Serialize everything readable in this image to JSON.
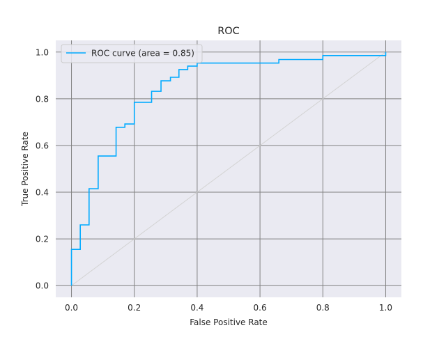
{
  "chart_data": {
    "type": "line",
    "title": "ROC",
    "xlabel": "False Positive Rate",
    "ylabel": "True Positive Rate",
    "xlim": [
      -0.05,
      1.05
    ],
    "ylim": [
      -0.05,
      1.05
    ],
    "xticks": [
      0.0,
      0.2,
      0.4,
      0.6,
      0.8,
      1.0
    ],
    "yticks": [
      0.0,
      0.2,
      0.4,
      0.6,
      0.8,
      1.0
    ],
    "xtick_labels": [
      "0.0",
      "0.2",
      "0.4",
      "0.6",
      "0.8",
      "1.0"
    ],
    "ytick_labels": [
      "0.0",
      "0.2",
      "0.4",
      "0.6",
      "0.8",
      "1.0"
    ],
    "grid": true,
    "legend_position": "top-left",
    "series": [
      {
        "name": "ROC curve (area = 0.85)",
        "color": "#00aaff",
        "step": true,
        "points": [
          [
            0.0,
            0.0
          ],
          [
            0.0,
            0.155
          ],
          [
            0.028,
            0.155
          ],
          [
            0.028,
            0.26
          ],
          [
            0.056,
            0.26
          ],
          [
            0.056,
            0.415
          ],
          [
            0.085,
            0.415
          ],
          [
            0.085,
            0.555
          ],
          [
            0.142,
            0.555
          ],
          [
            0.142,
            0.678
          ],
          [
            0.17,
            0.678
          ],
          [
            0.17,
            0.692
          ],
          [
            0.2,
            0.692
          ],
          [
            0.2,
            0.785
          ],
          [
            0.255,
            0.785
          ],
          [
            0.255,
            0.832
          ],
          [
            0.285,
            0.832
          ],
          [
            0.285,
            0.877
          ],
          [
            0.315,
            0.877
          ],
          [
            0.315,
            0.892
          ],
          [
            0.342,
            0.892
          ],
          [
            0.342,
            0.925
          ],
          [
            0.37,
            0.925
          ],
          [
            0.37,
            0.94
          ],
          [
            0.4,
            0.94
          ],
          [
            0.4,
            0.953
          ],
          [
            0.66,
            0.953
          ],
          [
            0.66,
            0.968
          ],
          [
            0.8,
            0.968
          ],
          [
            0.8,
            0.985
          ],
          [
            1.0,
            0.985
          ],
          [
            1.0,
            1.0
          ]
        ]
      }
    ],
    "reference_line": {
      "color": "#d3d3d3",
      "points": [
        [
          0.0,
          0.0
        ],
        [
          1.0,
          1.0
        ]
      ]
    },
    "colors": {
      "plot_background": "#eaeaf2",
      "grid": "#808080"
    }
  }
}
